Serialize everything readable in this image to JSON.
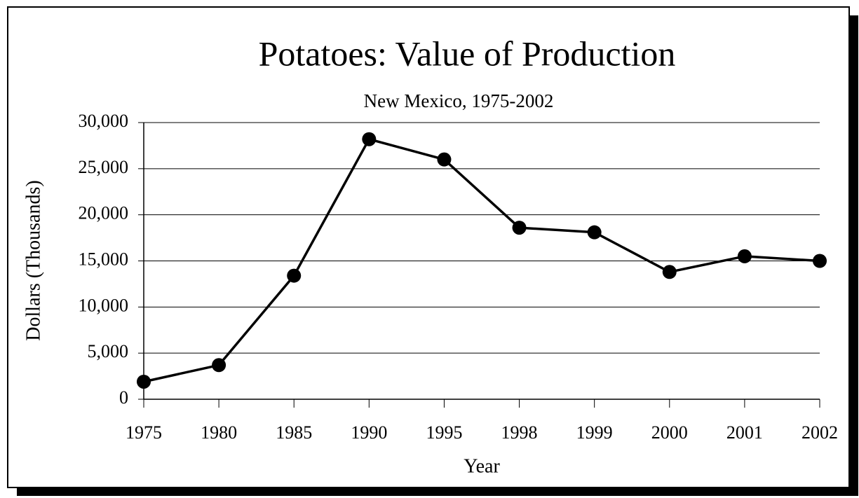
{
  "chart_data": {
    "type": "line",
    "title": "Potatoes: Value of Production",
    "subtitle": "New Mexico, 1975-2002",
    "x_label": "Year",
    "y_label": "Dollars (Thousands)",
    "categories": [
      "1975",
      "1980",
      "1985",
      "1990",
      "1995",
      "1998",
      "1999",
      "2000",
      "2001",
      "2002"
    ],
    "values": [
      1900,
      3700,
      13400,
      28200,
      26000,
      18600,
      18100,
      13800,
      15500,
      15000
    ],
    "color": "#000000",
    "ylim": [
      0,
      30000
    ],
    "yticks": [
      0,
      {
        "value": 5000,
        "label": "5,000"
      },
      {
        "value": 10000,
        "label": "10,000"
      },
      {
        "value": 15000,
        "label": "15,000"
      },
      {
        "value": 20000,
        "label": "20,000"
      },
      {
        "value": 25000,
        "label": "25,000"
      },
      {
        "value": 30000,
        "label": "30,000"
      }
    ],
    "grid": true
  }
}
